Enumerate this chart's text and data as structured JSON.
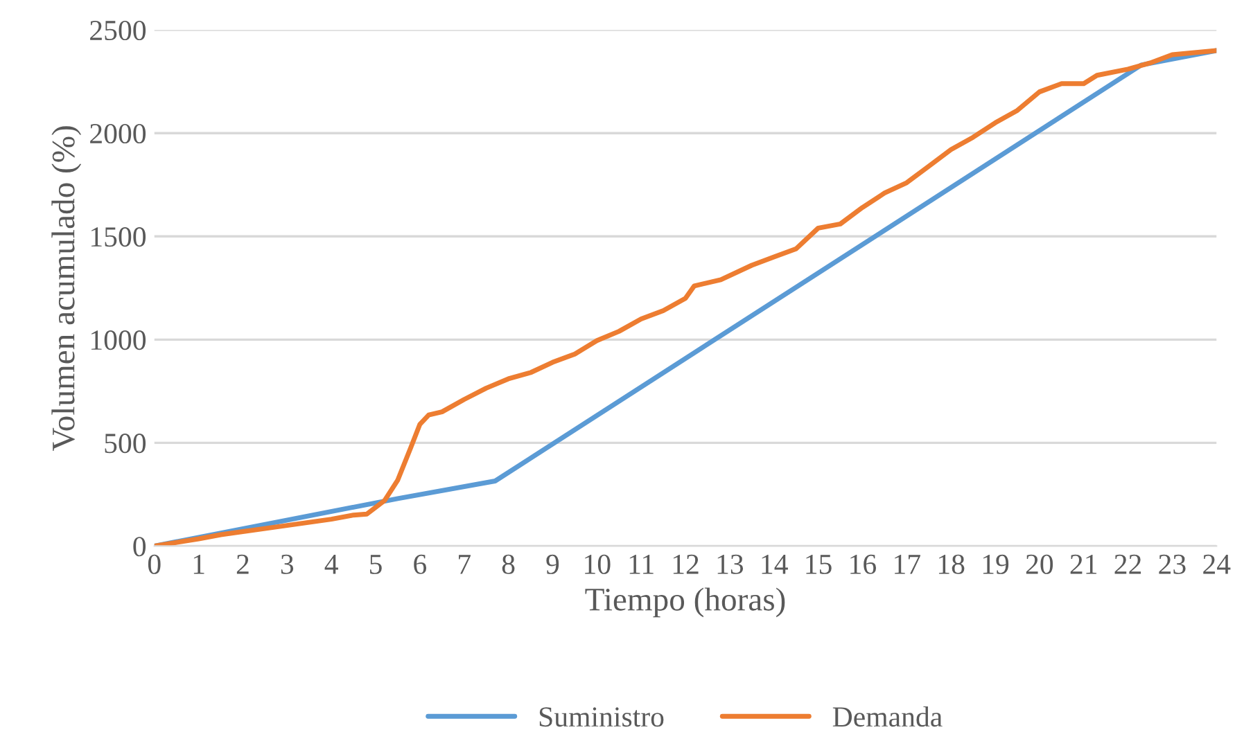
{
  "chart_data": {
    "type": "line",
    "xlabel": "Tiempo (horas)",
    "ylabel": "Volumen acumulado (%)",
    "xlim": [
      0,
      24
    ],
    "xticks": [
      0,
      1,
      2,
      3,
      4,
      5,
      6,
      7,
      8,
      9,
      10,
      11,
      12,
      13,
      14,
      15,
      16,
      17,
      18,
      19,
      20,
      21,
      22,
      23,
      24
    ],
    "ylim": [
      0,
      2500
    ],
    "yticks": [
      0,
      500,
      1000,
      1500,
      2000,
      2500
    ],
    "grid": "y",
    "legend": "bottom",
    "marker": "none",
    "line_style": "solid",
    "series": [
      {
        "name": "Suministro",
        "color": "#5b9bd5",
        "x": [
          0,
          5.5,
          7.7,
          22.3,
          24
        ],
        "values": [
          0,
          230,
          315,
          2330,
          2400
        ]
      },
      {
        "name": "Demanda",
        "color": "#ed7d31",
        "x": [
          0,
          1,
          1.5,
          2,
          3,
          4,
          4.5,
          4.8,
          5.2,
          5.5,
          5.8,
          6,
          6.2,
          6.5,
          7,
          7.5,
          8,
          8.5,
          9,
          9.5,
          10,
          10.5,
          11,
          11.5,
          12,
          12.2,
          12.8,
          13.5,
          14,
          14.5,
          15,
          15.5,
          16,
          16.5,
          17,
          17.5,
          18,
          18.5,
          19,
          19.5,
          20,
          20.5,
          21,
          21.3,
          22,
          22.5,
          23,
          24
        ],
        "values": [
          0,
          35,
          55,
          70,
          100,
          130,
          150,
          155,
          220,
          320,
          480,
          590,
          635,
          650,
          710,
          765,
          810,
          840,
          890,
          930,
          995,
          1040,
          1100,
          1140,
          1200,
          1260,
          1290,
          1360,
          1400,
          1440,
          1540,
          1560,
          1640,
          1710,
          1760,
          1840,
          1920,
          1980,
          2050,
          2110,
          2200,
          2240,
          2240,
          2280,
          2310,
          2340,
          2380,
          2400
        ]
      }
    ]
  }
}
